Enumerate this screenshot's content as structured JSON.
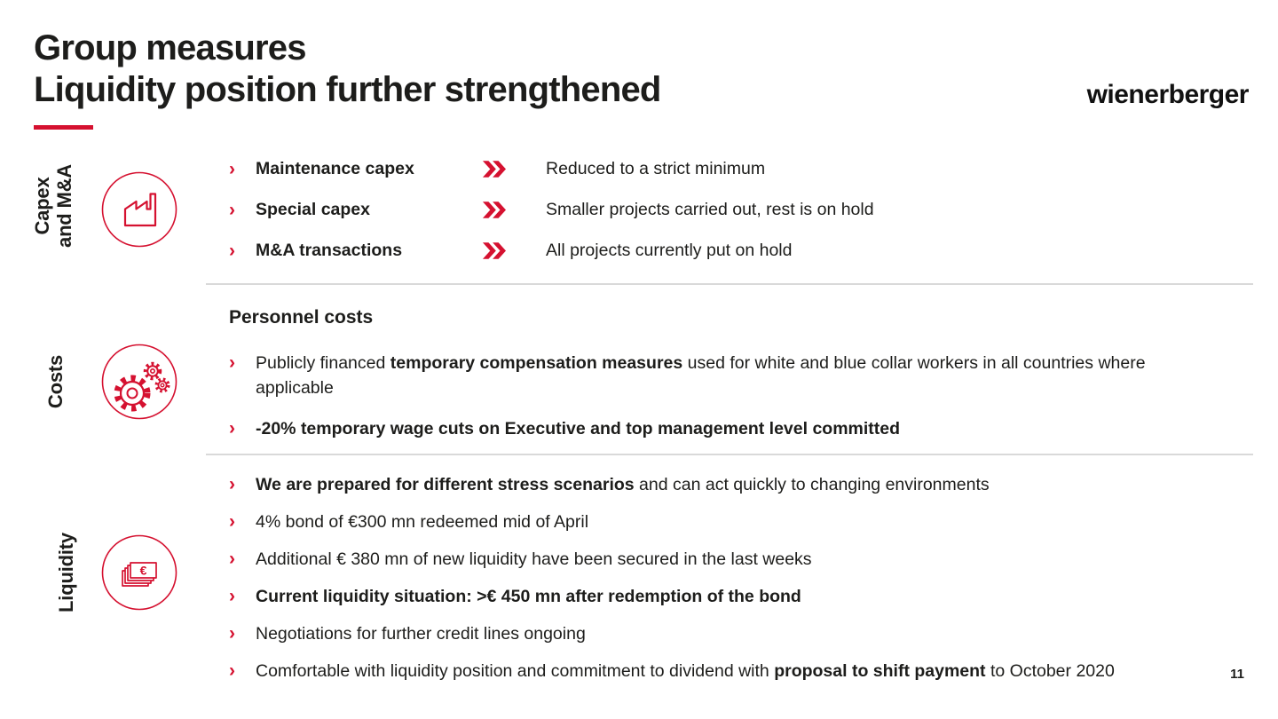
{
  "page": {
    "title_line1": "Group measures",
    "title_line2": "Liquidity position further strengthened",
    "logo_text": "wienerberger",
    "page_number": "11",
    "colors": {
      "accent_red": "#d51130",
      "text": "#1d1d1b",
      "divider": "#d9d9d9"
    }
  },
  "icons": {
    "bullet_glyph": "›",
    "euro_glyph": "€"
  },
  "sections": [
    {
      "id": "capex-ma",
      "side_label": "Capex\nand M&A",
      "icon": "factory-icon",
      "rows": [
        {
          "label": "Maintenance capex",
          "result": "Reduced to a strict minimum"
        },
        {
          "label": "Special capex",
          "result": "Smaller projects carried out, rest is on hold"
        },
        {
          "label": "M&A transactions",
          "result": "All projects currently put on hold"
        }
      ]
    },
    {
      "id": "costs",
      "side_label": "Costs",
      "icon": "gears-icon",
      "heading": "Personnel costs",
      "bullets": [
        {
          "segments": [
            {
              "text": "Publicly financed ",
              "bold": false
            },
            {
              "text": "temporary compensation measures",
              "bold": true
            },
            {
              "text": " used for white and blue collar workers in all countries where applicable",
              "bold": false
            }
          ]
        },
        {
          "segments": [
            {
              "text": "-20% temporary wage cuts on Executive and top management level committed",
              "bold": true
            }
          ]
        }
      ]
    },
    {
      "id": "liquidity",
      "side_label": "Liquidity",
      "icon": "banknotes-icon",
      "bullets": [
        {
          "segments": [
            {
              "text": "We are prepared for different stress scenarios",
              "bold": true
            },
            {
              "text": " and can act quickly to changing environments",
              "bold": false
            }
          ]
        },
        {
          "segments": [
            {
              "text": "4% bond of €300 mn redeemed mid of April",
              "bold": false
            }
          ]
        },
        {
          "segments": [
            {
              "text": "Additional € 380 mn of new liquidity have been secured in the last weeks",
              "bold": false
            }
          ]
        },
        {
          "segments": [
            {
              "text": "Current liquidity situation: >€ 450 mn after redemption of the bond",
              "bold": true
            }
          ]
        },
        {
          "segments": [
            {
              "text": "Negotiations for further credit lines ongoing",
              "bold": false
            }
          ]
        },
        {
          "segments": [
            {
              "text": "Comfortable with liquidity position and commitment to dividend with ",
              "bold": false
            },
            {
              "text": "proposal to shift payment",
              "bold": true
            },
            {
              "text": " to October 2020",
              "bold": false
            }
          ]
        }
      ]
    }
  ]
}
